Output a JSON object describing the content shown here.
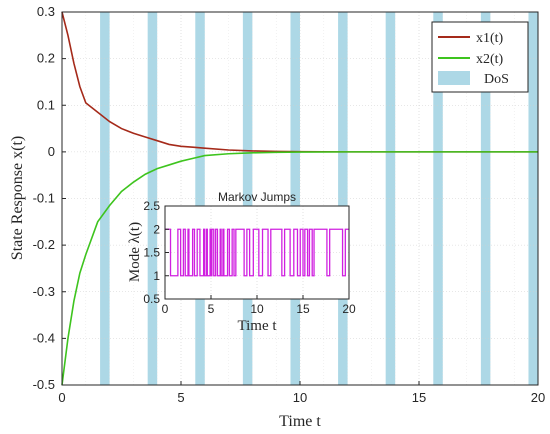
{
  "chart_data": [
    {
      "type": "line",
      "xlabel": "Time t",
      "ylabel": "State Response x(t)",
      "xlim": [
        0,
        20
      ],
      "ylim": [
        -0.5,
        0.3
      ],
      "xticks": [
        "0",
        "5",
        "10",
        "15",
        "20"
      ],
      "yticks": [
        "-0.5",
        "-0.4",
        "-0.3",
        "-0.2",
        "-0.1",
        "0",
        "0.1",
        "0.2",
        "0.3"
      ],
      "grid": true,
      "legend_position": "top-right",
      "series": [
        {
          "name": "x1(t)",
          "color": "#a52a1a",
          "x": [
            0,
            0.25,
            0.5,
            0.75,
            1,
            1.5,
            2,
            2.5,
            3,
            3.5,
            4,
            4.5,
            5,
            5.5,
            6,
            7,
            8,
            9,
            10,
            12,
            15,
            20
          ],
          "y": [
            0.3,
            0.25,
            0.19,
            0.14,
            0.105,
            0.085,
            0.065,
            0.05,
            0.04,
            0.032,
            0.024,
            0.016,
            0.012,
            0.01,
            0.008,
            0.004,
            0.002,
            0.001,
            0.0005,
            0,
            0,
            0
          ]
        },
        {
          "name": "x2(t)",
          "color": "#3ec41e",
          "x": [
            0,
            0.25,
            0.5,
            0.75,
            1,
            1.5,
            2,
            2.5,
            3,
            3.5,
            4,
            4.5,
            5,
            5.5,
            6,
            7,
            8,
            9,
            10,
            12,
            15,
            20
          ],
          "y": [
            -0.5,
            -0.4,
            -0.32,
            -0.26,
            -0.22,
            -0.15,
            -0.115,
            -0.085,
            -0.065,
            -0.048,
            -0.036,
            -0.028,
            -0.02,
            -0.014,
            -0.008,
            -0.004,
            -0.002,
            -0.001,
            -0.0005,
            0,
            0,
            0
          ]
        }
      ],
      "dos": {
        "name": "DoS",
        "color": "#add8e6",
        "intervals": [
          [
            1.6,
            2.0
          ],
          [
            3.6,
            4.0
          ],
          [
            5.6,
            6.0
          ],
          [
            7.6,
            8.0
          ],
          [
            9.6,
            10.0
          ],
          [
            11.6,
            12.0
          ],
          [
            13.6,
            14.0
          ],
          [
            15.6,
            16.0
          ],
          [
            17.6,
            18.0
          ],
          [
            19.6,
            20.0
          ]
        ]
      }
    },
    {
      "type": "line",
      "title": "Markov Jumps",
      "xlabel": "Time t",
      "ylabel": "Mode λ(t)",
      "xlim": [
        0,
        20
      ],
      "ylim": [
        0.5,
        2.5
      ],
      "xticks": [
        "0",
        "5",
        "10",
        "15",
        "20"
      ],
      "yticks": [
        "0.5",
        "1",
        "1.5",
        "2",
        "2.5"
      ],
      "grid": true,
      "series": [
        {
          "name": "λ(t)",
          "color": "#d020e0",
          "step": true,
          "x": [
            0,
            0.6,
            1.4,
            1.7,
            2.0,
            2.2,
            2.5,
            2.6,
            3.0,
            3.2,
            3.5,
            3.8,
            4.2,
            4.3,
            4.5,
            4.6,
            4.9,
            5.0,
            5.1,
            5.3,
            5.5,
            5.7,
            6.0,
            6.1,
            6.3,
            6.4,
            6.8,
            7.0,
            7.3,
            7.5,
            7.7,
            8.6,
            8.9,
            9.2,
            9.6,
            10.2,
            10.6,
            11.2,
            11.5,
            12.7,
            13.0,
            13.6,
            14.0,
            14.4,
            14.7,
            15.0,
            15.2,
            15.5,
            15.7,
            16.0,
            16.2,
            17.6,
            17.9,
            19.3,
            19.6,
            20.0
          ],
          "y": [
            2,
            1,
            2,
            1,
            2,
            1,
            2,
            1,
            2,
            1,
            2,
            1,
            2,
            1,
            2,
            1,
            2,
            1,
            2,
            1,
            2,
            1,
            2,
            1,
            2,
            1,
            2,
            1,
            2,
            1,
            2,
            1,
            2,
            1,
            2,
            1,
            2,
            1,
            2,
            1,
            2,
            1,
            2,
            1,
            2,
            1,
            2,
            1,
            2,
            1,
            2,
            1,
            2,
            1,
            2,
            2
          ]
        }
      ]
    }
  ]
}
